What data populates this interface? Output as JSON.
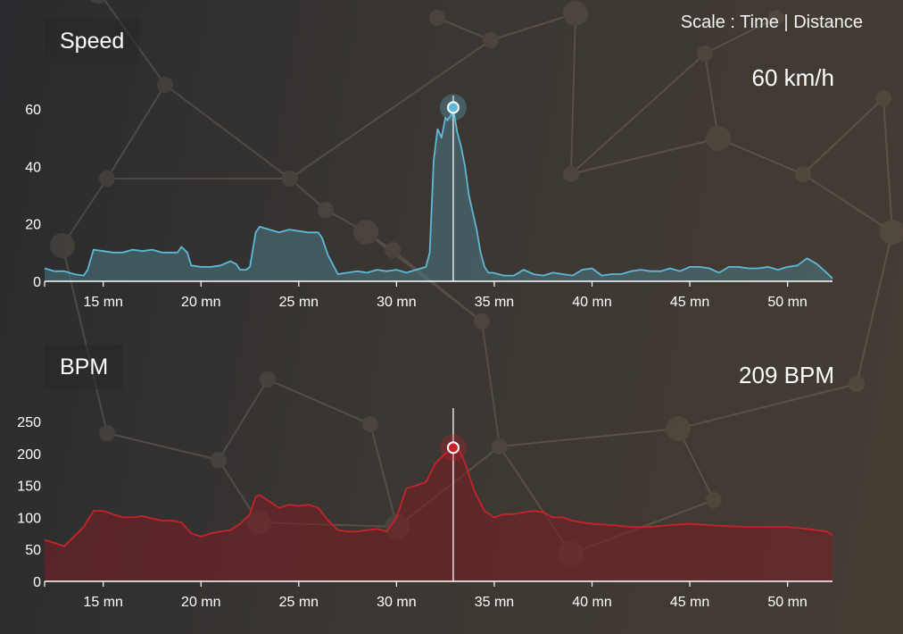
{
  "header": {
    "scale_label": "Scale :",
    "scale_time": "Time",
    "scale_separator": "|",
    "scale_distance": "Distance"
  },
  "chart_data": [
    {
      "type": "area",
      "title": "Speed",
      "readout": "60 km/h",
      "color": "#5fb8d6",
      "fill": "#4a7a85",
      "xlabel": "",
      "ylabel": "",
      "x_unit": "mn",
      "xlim": [
        12,
        52.3
      ],
      "ylim": [
        0,
        60
      ],
      "y_ticks": [
        0,
        20,
        40,
        60
      ],
      "x_ticks": [
        15,
        20,
        25,
        30,
        35,
        40,
        45,
        50
      ],
      "x_tick_labels": [
        "15 mn",
        "20 mn",
        "25 mn",
        "30 mn",
        "35 mn",
        "40 mn",
        "45 mn",
        "50 mn"
      ],
      "cursor": {
        "x": 32.9,
        "y": 60.5
      },
      "series": [
        {
          "x": [
            12,
            12.5,
            13,
            13.5,
            14,
            14.2,
            14.5,
            15,
            15.5,
            16,
            16.5,
            17,
            17.5,
            18,
            18.5,
            18.8,
            19,
            19.3,
            19.5,
            20,
            20.5,
            21,
            21.5,
            21.8,
            22,
            22.3,
            22.5,
            22.8,
            23,
            23.5,
            24,
            24.5,
            25,
            25.5,
            26,
            26.2,
            26.5,
            27,
            27.5,
            28,
            28.5,
            29,
            29.5,
            30,
            30.5,
            31,
            31.5,
            31.7,
            31.9,
            32.1,
            32.3,
            32.5,
            32.6,
            32.8,
            32.9,
            33.1,
            33.3,
            33.5,
            33.7,
            33.9,
            34.1,
            34.3,
            34.5,
            34.7,
            34.9,
            35.2,
            35.5,
            36,
            36.5,
            37,
            37.5,
            38,
            38.5,
            39,
            39.5,
            40,
            40.5,
            41,
            41.5,
            42,
            42.5,
            43,
            43.5,
            44,
            44.5,
            45,
            45.5,
            46,
            46.5,
            47,
            47.5,
            48,
            48.5,
            49,
            49.5,
            50,
            50.5,
            51,
            51.5,
            52,
            52.3
          ],
          "y": [
            4.5,
            3.5,
            3.5,
            2.5,
            2,
            4,
            11,
            10.5,
            10,
            10,
            11,
            10.5,
            11,
            10,
            10,
            10,
            12,
            10,
            5.5,
            5,
            5,
            5.5,
            7,
            6,
            4,
            4,
            5,
            17,
            19,
            18,
            17,
            18,
            17.5,
            17,
            17,
            15,
            9,
            2.5,
            3,
            3.5,
            3,
            4,
            3.5,
            4,
            3,
            4,
            5,
            10,
            42,
            53,
            50,
            57,
            56,
            58,
            60.5,
            52,
            47,
            40,
            30,
            24,
            18,
            10,
            5,
            3,
            3,
            2.5,
            2,
            2,
            4,
            2.5,
            2,
            3,
            2.5,
            2,
            4,
            4.5,
            2,
            2.5,
            2.5,
            3.5,
            4,
            3.5,
            3.5,
            4.5,
            3.5,
            5,
            5,
            4.5,
            3,
            5,
            5,
            4.5,
            4.5,
            5,
            4,
            5,
            5.5,
            8,
            6,
            3,
            1
          ]
        }
      ]
    },
    {
      "type": "area",
      "title": "BPM",
      "readout": "209 BPM",
      "color": "#c8222a",
      "fill": "#7a1e24",
      "xlabel": "",
      "ylabel": "",
      "x_unit": "mn",
      "xlim": [
        12,
        52.3
      ],
      "ylim": [
        0,
        250
      ],
      "y_ticks": [
        0,
        50,
        100,
        150,
        200,
        250
      ],
      "x_ticks": [
        15,
        20,
        25,
        30,
        35,
        40,
        45,
        50
      ],
      "x_tick_labels": [
        "15 mn",
        "20 mn",
        "25 mn",
        "30 mn",
        "35 mn",
        "40 mn",
        "45 mn",
        "50 mn"
      ],
      "cursor": {
        "x": 32.9,
        "y": 209
      },
      "series": [
        {
          "x": [
            12,
            12.5,
            13,
            13.5,
            14,
            14.5,
            15,
            15.5,
            16,
            16.5,
            17,
            17.5,
            18,
            18.5,
            19,
            19.5,
            20,
            20.5,
            21,
            21.5,
            22,
            22.5,
            22.8,
            23,
            23.5,
            24,
            24.5,
            25,
            25.5,
            26,
            26.5,
            27,
            27.5,
            28,
            28.5,
            29,
            29.5,
            30,
            30.5,
            31,
            31.5,
            32,
            32.5,
            32.9,
            33.2,
            33.5,
            34,
            34.5,
            35,
            35.5,
            36,
            36.5,
            37,
            37.5,
            38,
            38.5,
            39,
            39.5,
            40,
            41,
            42,
            43,
            44,
            45,
            46,
            47,
            48,
            49,
            50,
            51,
            52,
            52.3
          ],
          "y": [
            65,
            60,
            55,
            70,
            85,
            110,
            110,
            105,
            100,
            100,
            102,
            98,
            95,
            95,
            92,
            75,
            70,
            75,
            78,
            80,
            90,
            105,
            132,
            135,
            125,
            115,
            120,
            118,
            120,
            115,
            95,
            80,
            78,
            78,
            80,
            82,
            78,
            100,
            145,
            150,
            155,
            185,
            200,
            209,
            205,
            185,
            140,
            110,
            100,
            105,
            105,
            108,
            110,
            108,
            100,
            100,
            95,
            92,
            90,
            88,
            85,
            85,
            88,
            90,
            88,
            86,
            85,
            85,
            85,
            82,
            78,
            72
          ]
        }
      ]
    }
  ]
}
